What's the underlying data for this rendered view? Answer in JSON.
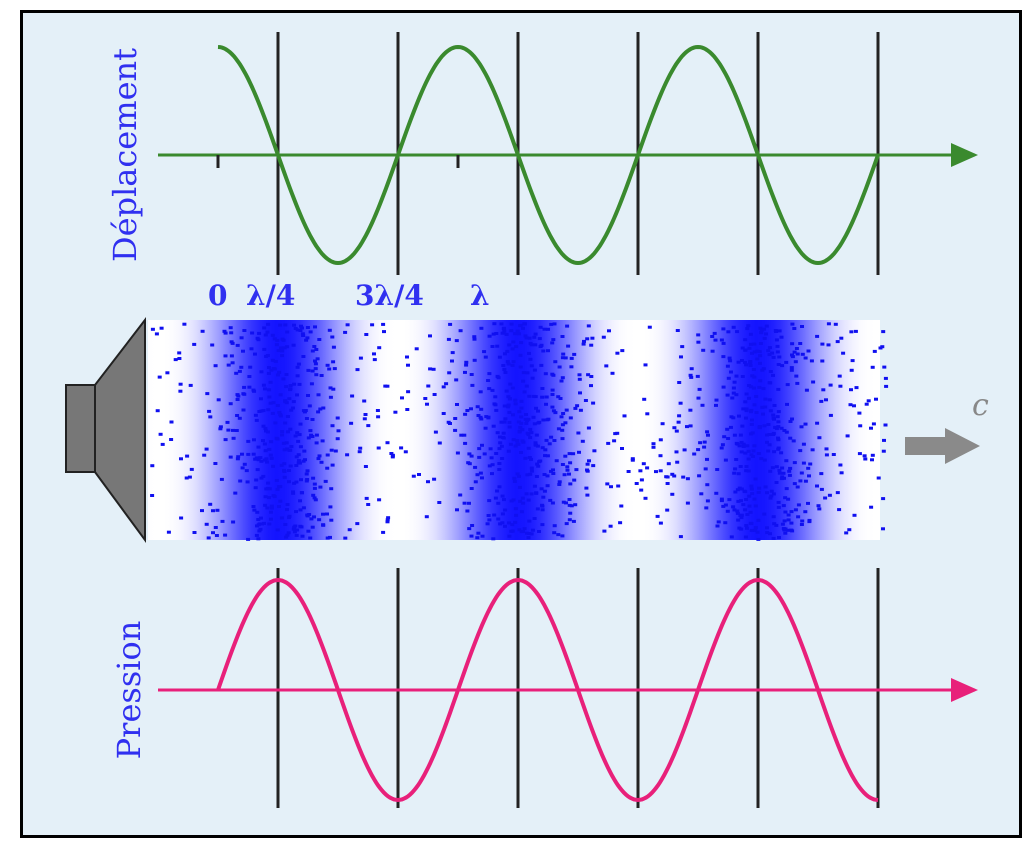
{
  "labels": {
    "displacement_axis": "Déplacement",
    "pressure_axis": "Pression",
    "positions": [
      "0",
      "λ/4",
      "3λ/4",
      "λ"
    ],
    "speed": "c"
  },
  "colors": {
    "background": "#e4f0f8",
    "displacement": "#3a8a2e",
    "pressure": "#e8207a",
    "particles": "#1010f0",
    "text": "#3030f0",
    "speaker": "#777777"
  },
  "icons": {
    "source": "loudspeaker-icon",
    "direction": "arrow-right-icon"
  }
}
